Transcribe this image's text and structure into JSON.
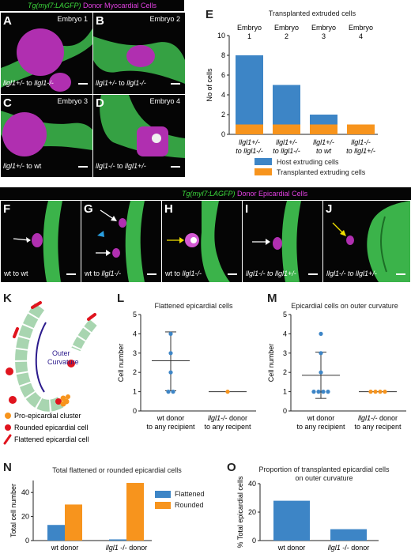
{
  "top_header": {
    "transgene": "Tg(myl7:LAGFP)",
    "donor": "Donor Myocardial Cells"
  },
  "mid_header": {
    "transgene": "Tg(myl7:LAGFP)",
    "donor": "Donor Epicardial Cells"
  },
  "panel_letters": {
    "A": "A",
    "B": "B",
    "C": "C",
    "D": "D",
    "E": "E",
    "F": "F",
    "G": "G",
    "H": "H",
    "I": "I",
    "J": "J",
    "K": "K",
    "L": "L",
    "M": "M",
    "N": "N",
    "O": "O"
  },
  "top_panels": {
    "A": {
      "embryo": "Embryo 1",
      "gene": "llgl1+/-",
      "to": " to ",
      "gene2": "llgl1-/-"
    },
    "B": {
      "embryo": "Embryo 2",
      "gene": "llgl1+/-",
      "to": " to ",
      "gene2": "llgl1-/-"
    },
    "C": {
      "embryo": "Embryo 3",
      "gene": "llgl1+/-",
      "to": " to wt",
      "gene2": ""
    },
    "D": {
      "embryo": "Embryo 4",
      "gene": "llgl1-/-",
      "to": " to ",
      "gene2": "llgl1+/-"
    }
  },
  "epi_panels": {
    "F": {
      "label_a": "wt to wt",
      "label_b": ""
    },
    "G": {
      "label_a": "wt to ",
      "label_b": "llgl1-/-"
    },
    "H": {
      "label_a": "wt to ",
      "label_b": "llgl1-/-"
    },
    "I": {
      "label_a": "llgl1-/- to ",
      "label_b": "llgl1+/-"
    },
    "J": {
      "label_a": "llgl1-/- to ",
      "label_b": "llgl1+/-"
    }
  },
  "diagram_K": {
    "outer_curvature": [
      "Outer",
      "Curvature"
    ],
    "legend": [
      "Pro-epicardial cluster",
      "Rounded epicardial cell",
      "Flattened epicardial cell"
    ],
    "colors": {
      "myocardium": "#a8d5b0",
      "rounded": "#e0141e",
      "pro": "#f7941d",
      "curvature_line": "#2b1a8c"
    }
  },
  "chart_data": [
    {
      "id": "E",
      "type": "bar",
      "stacked": true,
      "title": "Transplanted extruded cells",
      "ylabel": "No of cells",
      "ylim": [
        0,
        10
      ],
      "yticks": [
        0,
        2,
        4,
        6,
        8,
        10
      ],
      "column_headers": [
        [
          "Embryo",
          "1"
        ],
        [
          "Embryo",
          "2"
        ],
        [
          "Embryo",
          "3"
        ],
        [
          "Embryo",
          "4"
        ]
      ],
      "categories": [
        [
          "llgl1+/-",
          "to llgl1-/-"
        ],
        [
          "llgl1+/-",
          "to llgl1-/-"
        ],
        [
          "llgl1+/-",
          "to wt"
        ],
        [
          "llgl1-/-",
          "to llgl1+/-"
        ]
      ],
      "series": [
        {
          "name": "Host extruding cells",
          "color": "#3d85c6",
          "values": [
            7,
            4,
            1,
            0
          ]
        },
        {
          "name": "Transplanted extruding cells",
          "color": "#f7941d",
          "values": [
            1,
            1,
            1,
            1
          ]
        }
      ]
    },
    {
      "id": "L",
      "type": "scatter",
      "title": "Flattened epicardial cells",
      "ylabel": "Cell number",
      "ylim": [
        0,
        5
      ],
      "yticks": [
        0,
        1,
        2,
        3,
        4,
        5
      ],
      "categories": [
        [
          "wt donor",
          "to any recipient"
        ],
        [
          "llgl1-/- donor",
          "to any recipent"
        ]
      ],
      "groups": [
        {
          "color": "#3d85c6",
          "points": [
            4,
            3,
            2,
            1,
            1
          ],
          "mean": 2.6,
          "sd": [
            1.05,
            4.1
          ]
        },
        {
          "color": "#f7941d",
          "points": [
            1
          ],
          "mean": 1,
          "sd": null
        }
      ]
    },
    {
      "id": "M",
      "type": "scatter",
      "title": "Epicardial cells on outer curvature",
      "ylabel": "Cell number",
      "ylim": [
        0,
        5
      ],
      "yticks": [
        0,
        1,
        2,
        3,
        4,
        5
      ],
      "categories": [
        [
          "wt donor",
          "to any recipient"
        ],
        [
          "llgl1-/- donor",
          "to any recipent"
        ]
      ],
      "groups": [
        {
          "color": "#3d85c6",
          "points": [
            4,
            3,
            2,
            1,
            1,
            1,
            1
          ],
          "mean": 1.85,
          "sd": [
            0.65,
            3.05
          ]
        },
        {
          "color": "#f7941d",
          "points": [
            1,
            1,
            1,
            1
          ],
          "mean": 1,
          "sd": null
        }
      ]
    },
    {
      "id": "N",
      "type": "bar",
      "title": "Total flattened or rounded epicardial cells",
      "ylabel": "Total cell number",
      "ylim": [
        0,
        50
      ],
      "yticks": [
        0,
        20,
        40
      ],
      "categories": [
        "wt donor",
        "llgl1 -/- donor"
      ],
      "series": [
        {
          "name": "Flattened",
          "color": "#3d85c6",
          "values": [
            13,
            1
          ]
        },
        {
          "name": "Rounded",
          "color": "#f7941d",
          "values": [
            30,
            48
          ]
        }
      ]
    },
    {
      "id": "O",
      "type": "bar",
      "title": "Proportion of transplanted epicardial cells on outer curvature",
      "title_lines": [
        "Proportion of transplanted epicardial cells",
        "on outer curvature"
      ],
      "ylabel": "% Total epicardial cells",
      "ylim": [
        0,
        40
      ],
      "yticks": [
        0,
        20,
        40
      ],
      "categories": [
        "wt donor",
        "llgl1 -/- donor"
      ],
      "series": [
        {
          "name": "",
          "color": "#3d85c6",
          "values": [
            28,
            8
          ]
        }
      ]
    }
  ]
}
